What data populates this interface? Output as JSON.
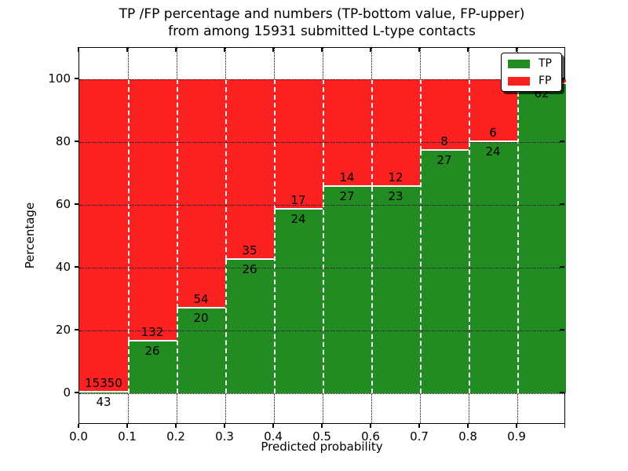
{
  "chart_data": {
    "type": "bar",
    "stacked": true,
    "normalized": "percent",
    "title_line1": "TP /FP percentage and numbers (TP-bottom value, FP-upper)",
    "title_line2": "from among 15931 submitted L-type contacts",
    "xlabel": "Predicted probability",
    "ylabel": "Percentage",
    "bins": [
      "0.0-0.1",
      "0.1-0.2",
      "0.2-0.3",
      "0.3-0.4",
      "0.4-0.5",
      "0.5-0.6",
      "0.6-0.7",
      "0.7-0.8",
      "0.8-0.9",
      "0.9-1.0"
    ],
    "series": [
      {
        "name": "TP",
        "color": "#228b22",
        "counts": [
          43,
          26,
          20,
          26,
          24,
          27,
          23,
          27,
          24,
          62
        ]
      },
      {
        "name": "FP",
        "color": "#fb2121",
        "counts": [
          15350,
          132,
          54,
          35,
          17,
          14,
          12,
          8,
          6,
          1
        ]
      }
    ],
    "tp_percent_of_bin": [
      0.28,
      16.46,
      27.03,
      42.62,
      58.54,
      65.85,
      65.71,
      77.14,
      80.0,
      98.41
    ],
    "xtick_labels": [
      "0.0",
      "0.1",
      "0.2",
      "0.3",
      "0.4",
      "0.5",
      "0.6",
      "0.7",
      "0.8",
      "0.9"
    ],
    "yticks": [
      0,
      20,
      40,
      60,
      80,
      100
    ],
    "xlim": [
      0.0,
      1.0
    ],
    "ylim": [
      -10,
      110
    ],
    "grid": true,
    "legend": {
      "position": "upper right",
      "entries": [
        "TP",
        "FP"
      ]
    }
  }
}
